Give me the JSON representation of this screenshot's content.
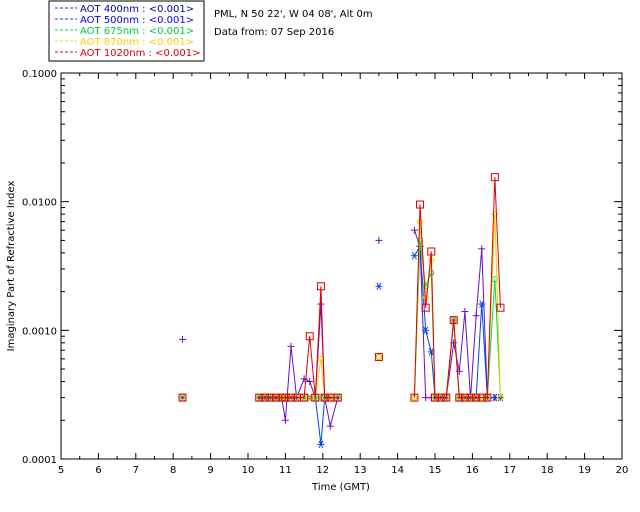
{
  "chart_data": {
    "type": "line",
    "info": {
      "site": "PML, N 50 22', W 04 08', Alt 0m",
      "date": "Data from: 07 Sep 2016"
    },
    "xlabel": "Time (GMT)",
    "ylabel": "Imaginary Part of Refractive Index",
    "xlim": [
      5,
      20
    ],
    "ylim": [
      0.0001,
      0.1
    ],
    "yscale": "log",
    "xticks": [
      "5",
      "6",
      "7",
      "8",
      "9",
      "10",
      "11",
      "12",
      "13",
      "14",
      "15",
      "16",
      "17",
      "18",
      "19",
      "20"
    ],
    "yticks": [
      "0.0001",
      "0.0010",
      "0.0100",
      "0.1000"
    ],
    "legend_position": "top-left outside",
    "series": [
      {
        "name": "AOT  400nm : <0.001>",
        "label_color": "#0000aa",
        "color": "#6a0ec8",
        "marker": "plus",
        "x": [
          8.25,
          10.3,
          10.45,
          10.6,
          10.75,
          10.9,
          11.0,
          11.15,
          11.3,
          11.5,
          11.65,
          11.8,
          11.95,
          12.05,
          12.2,
          12.4,
          13.5,
          14.45,
          14.6,
          14.75,
          14.9,
          15.0,
          15.15,
          15.3,
          15.5,
          15.65,
          15.8,
          15.95,
          16.1,
          16.25,
          16.4,
          16.6,
          16.75
        ],
        "y": [
          0.00085,
          0.0003,
          0.0003,
          0.0003,
          0.0003,
          0.0003,
          0.0002,
          0.00075,
          0.0003,
          0.00042,
          0.0004,
          0.0003,
          0.0016,
          0.0003,
          0.00018,
          0.0003,
          0.005,
          0.006,
          0.0045,
          0.0003,
          0.0003,
          0.0003,
          0.0003,
          0.0003,
          0.0008,
          0.00048,
          0.0014,
          0.0003,
          0.0013,
          0.0043,
          0.0003,
          0.0003,
          0.0003
        ]
      },
      {
        "name": "AOT  500nm : <0.001>",
        "label_color": "#0000ff",
        "color": "#0044ee",
        "marker": "asterisk",
        "x": [
          8.25,
          10.3,
          10.45,
          10.6,
          10.75,
          10.9,
          11.0,
          11.15,
          11.3,
          11.5,
          11.65,
          11.8,
          11.95,
          12.05,
          12.2,
          12.4,
          13.5,
          14.45,
          14.6,
          14.75,
          14.9,
          15.0,
          15.15,
          15.3,
          15.5,
          15.65,
          15.8,
          15.95,
          16.1,
          16.25,
          16.4,
          16.6,
          16.75
        ],
        "y": [
          0.0003,
          0.0003,
          0.0003,
          0.0003,
          0.0003,
          0.0003,
          0.0003,
          0.0003,
          0.0003,
          0.0003,
          0.0003,
          0.0003,
          0.00013,
          0.0003,
          0.0003,
          0.0003,
          0.0022,
          0.0038,
          0.0045,
          0.001,
          0.00068,
          0.0003,
          0.0003,
          0.0003,
          0.0012,
          0.0003,
          0.0003,
          0.0003,
          0.0003,
          0.0016,
          0.0003,
          0.0003,
          0.0003
        ]
      },
      {
        "name": "AOT  675nm : <0.001>",
        "label_color": "#00cc44",
        "color": "#00dd55",
        "marker": "circle",
        "x": [
          8.25,
          10.3,
          10.45,
          10.6,
          10.75,
          10.9,
          11.0,
          11.15,
          11.3,
          11.5,
          11.65,
          11.8,
          11.95,
          12.05,
          12.2,
          12.4,
          13.5,
          14.45,
          14.6,
          14.75,
          14.9,
          15.0,
          15.15,
          15.3,
          15.5,
          15.65,
          15.8,
          15.95,
          16.1,
          16.25,
          16.4,
          16.6,
          16.75
        ],
        "y": [
          0.0003,
          0.0003,
          0.0003,
          0.0003,
          0.0003,
          0.0003,
          0.0003,
          0.0003,
          0.0003,
          0.0003,
          0.0003,
          0.0003,
          0.0003,
          0.0003,
          0.0003,
          0.0003,
          0.00062,
          0.0003,
          0.005,
          0.0022,
          0.0028,
          0.0003,
          0.0003,
          0.0003,
          0.0012,
          0.0003,
          0.0003,
          0.0003,
          0.0003,
          0.0003,
          0.0003,
          0.0025,
          0.0003
        ]
      },
      {
        "name": "AOT  870nm : <0.001>",
        "label_color": "#ffcc00",
        "color": "#ffcc00",
        "marker": "diamond",
        "x": [
          8.25,
          10.3,
          10.45,
          10.6,
          10.75,
          10.9,
          11.0,
          11.15,
          11.3,
          11.5,
          11.65,
          11.8,
          11.95,
          12.05,
          12.2,
          12.4,
          13.5,
          14.45,
          14.6,
          14.75,
          14.9,
          15.0,
          15.15,
          15.3,
          15.5,
          15.65,
          15.8,
          15.95,
          16.1,
          16.25,
          16.4,
          16.6,
          16.75
        ],
        "y": [
          0.0003,
          0.0003,
          0.0003,
          0.0003,
          0.0003,
          0.0003,
          0.0003,
          0.0003,
          0.0003,
          0.0003,
          0.0003,
          0.0003,
          0.0006,
          0.0003,
          0.0003,
          0.0003,
          0.00062,
          0.0003,
          0.007,
          0.0018,
          0.0035,
          0.0003,
          0.0003,
          0.0003,
          0.0012,
          0.0003,
          0.0003,
          0.0003,
          0.0003,
          0.0003,
          0.0003,
          0.008,
          0.0003
        ]
      },
      {
        "name": "AOT 1020nm : <0.001>",
        "label_color": "#dd0000",
        "color": "#dd0000",
        "marker": "square",
        "x": [
          8.25,
          10.3,
          10.45,
          10.6,
          10.75,
          10.9,
          11.0,
          11.15,
          11.3,
          11.5,
          11.65,
          11.8,
          11.95,
          12.05,
          12.2,
          12.4,
          13.5,
          14.45,
          14.6,
          14.75,
          14.9,
          15.0,
          15.15,
          15.3,
          15.5,
          15.65,
          15.8,
          15.95,
          16.1,
          16.25,
          16.4,
          16.6,
          16.75
        ],
        "y": [
          0.0003,
          0.0003,
          0.0003,
          0.0003,
          0.0003,
          0.0003,
          0.0003,
          0.0003,
          0.0003,
          0.0003,
          0.0009,
          0.0003,
          0.0022,
          0.0003,
          0.0003,
          0.0003,
          0.00062,
          0.0003,
          0.0095,
          0.0015,
          0.0041,
          0.0003,
          0.0003,
          0.0003,
          0.0012,
          0.0003,
          0.0003,
          0.0003,
          0.0003,
          0.0003,
          0.0003,
          0.0155,
          0.0015
        ]
      }
    ]
  }
}
